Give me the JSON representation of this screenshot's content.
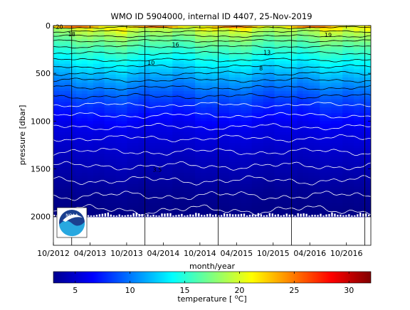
{
  "chart_data": {
    "type": "heatmap",
    "title": "WMO ID 5904000, internal ID 4407, 25-Nov-2019",
    "xlabel": "month/year",
    "ylabel": "pressure [dbar]",
    "colorbar_label": "temperature [°C]",
    "x_ticks": [
      "10/2012",
      "04/2013",
      "10/2013",
      "04/2014",
      "10/2014",
      "04/2015",
      "10/2015",
      "04/2016",
      "10/2016"
    ],
    "y_ticks": [
      0,
      500,
      1000,
      1500,
      2000
    ],
    "ylim": [
      2300,
      0
    ],
    "xlim": [
      "2012-10",
      "2017-02"
    ],
    "colorbar_ticks": [
      5,
      10,
      15,
      20,
      25,
      30
    ],
    "colorbar_range": [
      3,
      32
    ],
    "colormap": "jet",
    "contour_labels": [
      {
        "text": "18",
        "x": "2013-01",
        "y": 110
      },
      {
        "text": "16",
        "x": "2014-06",
        "y": 220
      },
      {
        "text": "19",
        "x": "2016-07",
        "y": 120
      },
      {
        "text": "13",
        "x": "2015-09",
        "y": 300
      },
      {
        "text": "10",
        "x": "2014-02",
        "y": 410
      },
      {
        "text": "8",
        "x": "2015-08",
        "y": 470
      },
      {
        "text": "3.5",
        "x": "2014-03",
        "y": 1530
      },
      {
        "text": "20",
        "x": "2012-11",
        "y": 35
      }
    ],
    "vertical_lines": [
      "2013-01",
      "2014-01",
      "2015-01",
      "2016-01",
      "2017-01"
    ],
    "isotherm_depths": [
      {
        "t": 20,
        "z": 20
      },
      {
        "t": 19,
        "z": 60
      },
      {
        "t": 18,
        "z": 110
      },
      {
        "t": 17,
        "z": 160
      },
      {
        "t": 16,
        "z": 220
      },
      {
        "t": 15,
        "z": 290
      },
      {
        "t": 14,
        "z": 360
      },
      {
        "t": 13,
        "z": 430
      },
      {
        "t": 12,
        "z": 500
      },
      {
        "t": 11,
        "z": 570
      },
      {
        "t": 10,
        "z": 650
      },
      {
        "t": 9,
        "z": 740
      },
      {
        "t": 8,
        "z": 830
      },
      {
        "t": 7,
        "z": 940
      },
      {
        "t": 6,
        "z": 1060
      },
      {
        "t": 5.5,
        "z": 1180
      },
      {
        "t": 5,
        "z": 1320
      },
      {
        "t": 4.5,
        "z": 1470
      },
      {
        "t": 4,
        "z": 1620
      },
      {
        "t": 3.5,
        "z": 1780
      },
      {
        "t": 3.2,
        "z": 1930
      }
    ]
  },
  "logo": {
    "text": "NOAA",
    "colors": {
      "sky": "#1b3f8f",
      "water": "#28a8e0",
      "bird": "#ffffff"
    }
  }
}
